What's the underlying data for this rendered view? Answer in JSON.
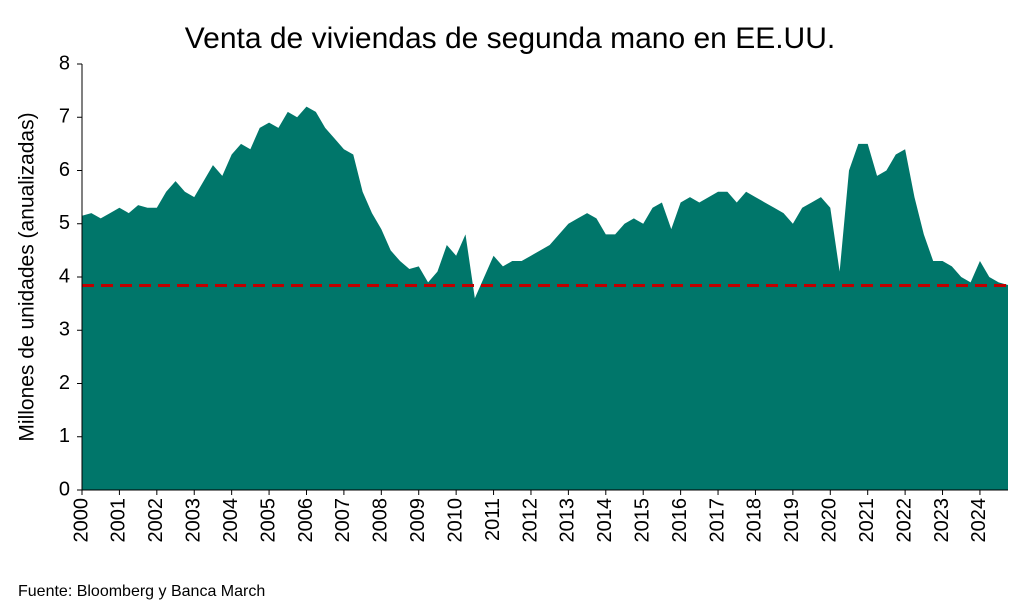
{
  "chart_data": {
    "type": "area",
    "title": "Venta de viviendas de segunda mano en EE.UU.",
    "ylabel": "Millones de unidades (anualizadas)",
    "source": "Fuente: Bloomberg y Banca March",
    "x": [
      2000,
      2000.25,
      2000.5,
      2000.75,
      2001,
      2001.25,
      2001.5,
      2001.75,
      2002,
      2002.25,
      2002.5,
      2002.75,
      2003,
      2003.25,
      2003.5,
      2003.75,
      2004,
      2004.25,
      2004.5,
      2004.75,
      2005,
      2005.25,
      2005.5,
      2005.75,
      2006,
      2006.25,
      2006.5,
      2006.75,
      2007,
      2007.25,
      2007.5,
      2007.75,
      2008,
      2008.25,
      2008.5,
      2008.75,
      2009,
      2009.25,
      2009.5,
      2009.75,
      2010,
      2010.25,
      2010.5,
      2010.75,
      2011,
      2011.25,
      2011.5,
      2011.75,
      2012,
      2012.25,
      2012.5,
      2012.75,
      2013,
      2013.25,
      2013.5,
      2013.75,
      2014,
      2014.25,
      2014.5,
      2014.75,
      2015,
      2015.25,
      2015.5,
      2015.75,
      2016,
      2016.25,
      2016.5,
      2016.75,
      2017,
      2017.25,
      2017.5,
      2017.75,
      2018,
      2018.25,
      2018.5,
      2018.75,
      2019,
      2019.25,
      2019.5,
      2019.75,
      2020,
      2020.25,
      2020.5,
      2020.75,
      2021,
      2021.25,
      2021.5,
      2021.75,
      2022,
      2022.25,
      2022.5,
      2022.75,
      2023,
      2023.25,
      2023.5,
      2023.75,
      2024,
      2024.25,
      2024.5,
      2024.75
    ],
    "series": [
      {
        "color": "#00766a",
        "values": [
          5.15,
          5.2,
          5.1,
          5.2,
          5.3,
          5.2,
          5.35,
          5.3,
          5.3,
          5.6,
          5.8,
          5.6,
          5.5,
          5.8,
          6.1,
          5.9,
          6.3,
          6.5,
          6.4,
          6.8,
          6.9,
          6.8,
          7.1,
          7.0,
          7.2,
          7.1,
          6.8,
          6.6,
          6.4,
          6.3,
          5.6,
          5.2,
          4.9,
          4.5,
          4.3,
          4.15,
          4.2,
          3.9,
          4.1,
          4.6,
          4.4,
          4.8,
          3.6,
          4.0,
          4.4,
          4.2,
          4.3,
          4.3,
          4.4,
          4.5,
          4.6,
          4.8,
          5.0,
          5.1,
          5.2,
          5.1,
          4.8,
          4.8,
          5.0,
          5.1,
          5.0,
          5.3,
          5.4,
          4.9,
          5.4,
          5.5,
          5.4,
          5.5,
          5.6,
          5.6,
          5.4,
          5.6,
          5.5,
          5.4,
          5.3,
          5.2,
          5.0,
          5.3,
          5.4,
          5.5,
          5.3,
          4.1,
          6.0,
          6.5,
          6.5,
          5.9,
          6.0,
          6.3,
          6.4,
          5.5,
          4.8,
          4.3,
          4.3,
          4.2,
          4.0,
          3.9,
          4.3,
          4.0,
          3.9,
          3.85
        ]
      }
    ],
    "reference_line": {
      "value": 3.84,
      "color": "#c00000"
    },
    "xlim": [
      2000,
      2024.75
    ],
    "xticks": [
      2000,
      2001,
      2002,
      2003,
      2004,
      2005,
      2006,
      2007,
      2008,
      2009,
      2010,
      2011,
      2012,
      2013,
      2014,
      2015,
      2016,
      2017,
      2018,
      2019,
      2020,
      2021,
      2022,
      2023,
      2024
    ],
    "ylim": [
      0,
      8
    ],
    "yticks": [
      0,
      1,
      2,
      3,
      4,
      5,
      6,
      7,
      8
    ],
    "grid": false
  }
}
